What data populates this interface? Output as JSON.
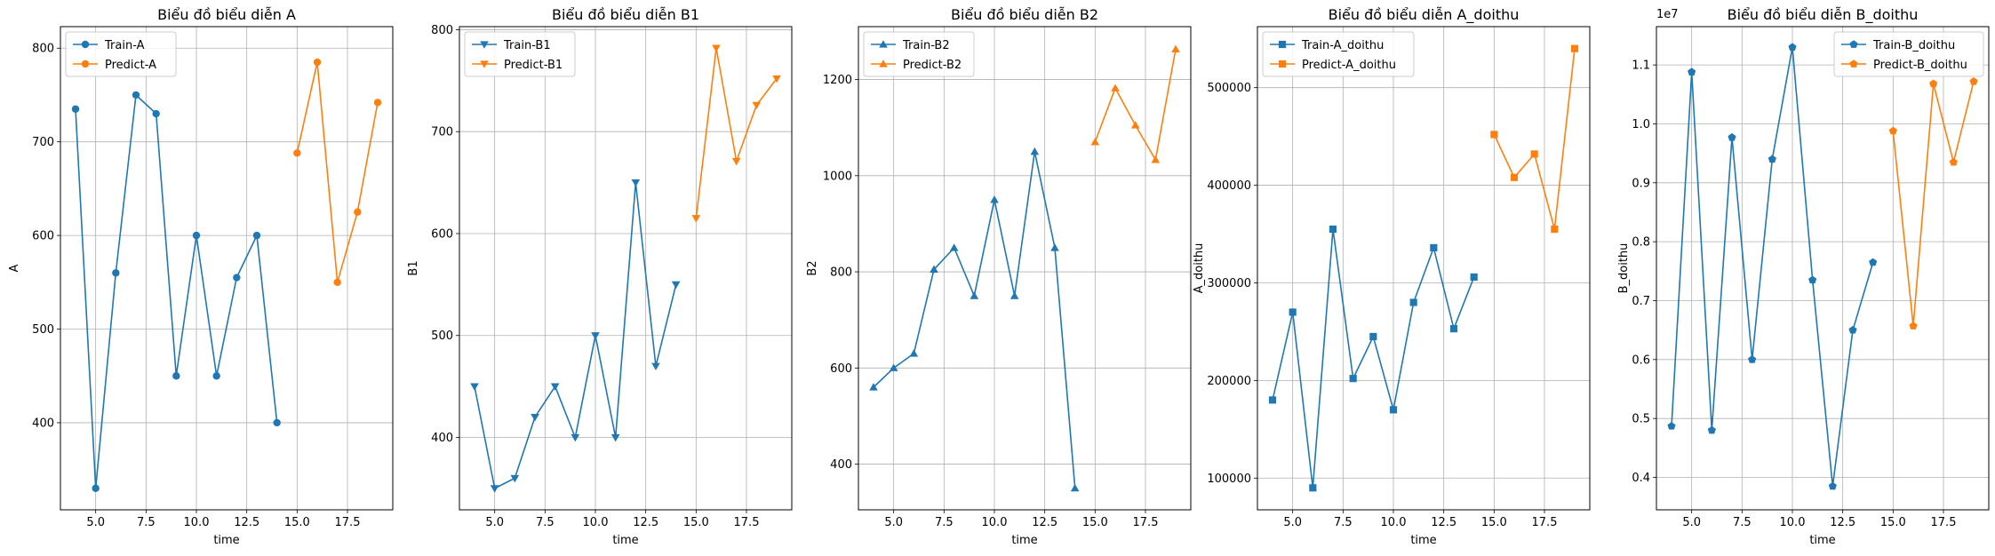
{
  "chart_data": [
    {
      "type": "line",
      "title": "Biểu đồ biểu diễn A",
      "xlabel": "time",
      "ylabel": "A",
      "xlim": [
        3.25,
        19.75
      ],
      "ylim": [
        307,
        823
      ],
      "xticks": [
        5,
        7.5,
        10,
        12.5,
        15,
        17.5
      ],
      "xtick_labels": [
        "5.0",
        "7.5",
        "10.0",
        "12.5",
        "15.0",
        "17.5"
      ],
      "yticks": [
        400,
        500,
        600,
        700,
        800
      ],
      "ytick_labels": [
        "400",
        "500",
        "600",
        "700",
        "800"
      ],
      "grid": true,
      "legend_position": "top-left",
      "series": [
        {
          "name": "Train-A",
          "color": "#1f77b4",
          "marker": "circle",
          "x": [
            4,
            5,
            6,
            7,
            8,
            9,
            10,
            11,
            12,
            13,
            14
          ],
          "y": [
            735,
            330,
            560,
            750,
            730,
            450,
            600,
            450,
            555,
            600,
            400
          ]
        },
        {
          "name": "Predict-A",
          "color": "#ff7f0e",
          "marker": "circle",
          "x": [
            15,
            16,
            17,
            18,
            19
          ],
          "y": [
            688,
            785,
            550,
            625,
            742
          ]
        }
      ]
    },
    {
      "type": "line",
      "title": "Biểu đồ biểu diễn B1",
      "xlabel": "time",
      "ylabel": "B1",
      "xlim": [
        3.25,
        19.75
      ],
      "ylim": [
        329,
        803
      ],
      "xticks": [
        5,
        7.5,
        10,
        12.5,
        15,
        17.5
      ],
      "xtick_labels": [
        "5.0",
        "7.5",
        "10.0",
        "12.5",
        "15.0",
        "17.5"
      ],
      "yticks": [
        400,
        500,
        600,
        700,
        800
      ],
      "ytick_labels": [
        "400",
        "500",
        "600",
        "700",
        "800"
      ],
      "grid": true,
      "legend_position": "top-left",
      "series": [
        {
          "name": "Train-B1",
          "color": "#1f77b4",
          "marker": "triangle-down",
          "x": [
            4,
            5,
            6,
            7,
            8,
            9,
            10,
            11,
            12,
            13,
            14
          ],
          "y": [
            450,
            350,
            360,
            420,
            450,
            400,
            500,
            400,
            650,
            470,
            550
          ]
        },
        {
          "name": "Predict-B1",
          "color": "#ff7f0e",
          "marker": "triangle-down",
          "x": [
            15,
            16,
            17,
            18,
            19
          ],
          "y": [
            615,
            782,
            671,
            726,
            752
          ]
        }
      ]
    },
    {
      "type": "line",
      "title": "Biểu đồ biểu diễn B2",
      "xlabel": "time",
      "ylabel": "B2",
      "xlim": [
        3.25,
        19.75
      ],
      "ylim": [
        305,
        1310
      ],
      "xticks": [
        5,
        7.5,
        10,
        12.5,
        15,
        17.5
      ],
      "xtick_labels": [
        "5.0",
        "7.5",
        "10.0",
        "12.5",
        "15.0",
        "17.5"
      ],
      "yticks": [
        400,
        600,
        800,
        1000,
        1200
      ],
      "ytick_labels": [
        "400",
        "600",
        "800",
        "1000",
        "1200"
      ],
      "grid": true,
      "legend_position": "top-left",
      "series": [
        {
          "name": "Train-B2",
          "color": "#1f77b4",
          "marker": "triangle-up",
          "x": [
            4,
            5,
            6,
            7,
            8,
            9,
            10,
            11,
            12,
            13,
            14
          ],
          "y": [
            560,
            600,
            630,
            805,
            850,
            750,
            950,
            750,
            1050,
            850,
            350
          ]
        },
        {
          "name": "Predict-B2",
          "color": "#ff7f0e",
          "marker": "triangle-up",
          "x": [
            15,
            16,
            17,
            18,
            19
          ],
          "y": [
            1070,
            1182,
            1105,
            1033,
            1263
          ]
        }
      ]
    },
    {
      "type": "line",
      "title": "Biểu đồ biểu diễn A_doithu",
      "xlabel": "time",
      "ylabel": "A_doithu",
      "xlim": [
        3.25,
        19.75
      ],
      "ylim": [
        67500,
        562500
      ],
      "xticks": [
        5,
        7.5,
        10,
        12.5,
        15,
        17.5
      ],
      "xtick_labels": [
        "5.0",
        "7.5",
        "10.0",
        "12.5",
        "15.0",
        "17.5"
      ],
      "yticks": [
        100000,
        200000,
        300000,
        400000,
        500000
      ],
      "ytick_labels": [
        "100000",
        "200000",
        "300000",
        "400000",
        "500000"
      ],
      "grid": true,
      "legend_position": "top-left",
      "series": [
        {
          "name": "Train-A_doithu",
          "color": "#1f77b4",
          "marker": "square",
          "x": [
            4,
            5,
            6,
            7,
            8,
            9,
            10,
            11,
            12,
            13,
            14
          ],
          "y": [
            180000,
            270000,
            90000,
            355000,
            202000,
            245000,
            170000,
            280000,
            336000,
            253000,
            306000
          ]
        },
        {
          "name": "Predict-A_doithu",
          "color": "#ff7f0e",
          "marker": "square",
          "x": [
            15,
            16,
            17,
            18,
            19
          ],
          "y": [
            452000,
            408000,
            432000,
            355000,
            540000
          ]
        }
      ]
    },
    {
      "type": "line",
      "title": "Biểu đồ biểu diễn B_doithu",
      "xlabel": "time",
      "ylabel": "B_doithu",
      "offset_label": "1e7",
      "xlim": [
        3.25,
        19.75
      ],
      "ylim": [
        3.45,
        11.65
      ],
      "xticks": [
        5,
        7.5,
        10,
        12.5,
        15,
        17.5
      ],
      "xtick_labels": [
        "5.0",
        "7.5",
        "10.0",
        "12.5",
        "15.0",
        "17.5"
      ],
      "yticks": [
        4,
        5,
        6,
        7,
        8,
        9,
        10,
        11
      ],
      "ytick_labels": [
        "0.4",
        "0.5",
        "0.6",
        "0.7",
        "0.8",
        "0.9",
        "1.0",
        "1.1"
      ],
      "grid": true,
      "legend_position": "top-right",
      "series": [
        {
          "name": "Train-B_doithu",
          "color": "#1f77b4",
          "marker": "pentagon",
          "x": [
            4,
            5,
            6,
            7,
            8,
            9,
            10,
            11,
            12,
            13,
            14
          ],
          "y": [
            4.87,
            10.88,
            4.8,
            9.77,
            6.0,
            9.4,
            11.3,
            7.35,
            3.85,
            6.5,
            7.65
          ]
        },
        {
          "name": "Predict-B_doithu",
          "color": "#ff7f0e",
          "marker": "pentagon",
          "x": [
            15,
            16,
            17,
            18,
            19
          ],
          "y": [
            9.88,
            6.57,
            10.68,
            9.35,
            10.72
          ]
        }
      ]
    }
  ]
}
